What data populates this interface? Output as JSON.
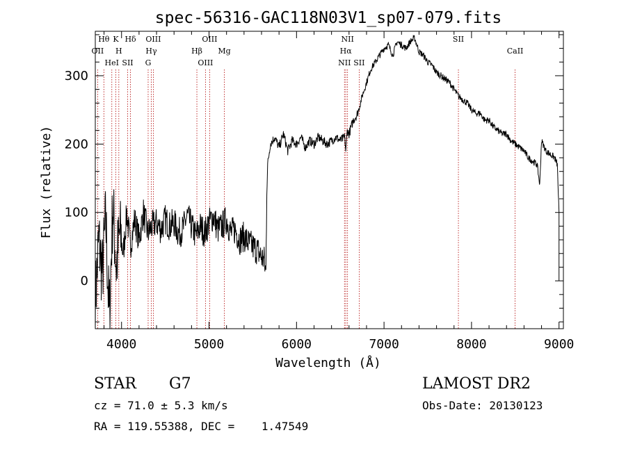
{
  "chart_data": {
    "type": "line",
    "title": "spec-56316-GAC118N03V1_sp07-079.fits",
    "xlabel": "Wavelength (Å)",
    "ylabel": "Flux (relative)",
    "xlim": [
      3700,
      9050
    ],
    "ylim": [
      -70,
      365
    ],
    "grid": false,
    "xticks": [
      {
        "value": 4000,
        "label": "4000"
      },
      {
        "value": 5000,
        "label": "5000"
      },
      {
        "value": 6000,
        "label": "6000"
      },
      {
        "value": 7000,
        "label": "7000"
      },
      {
        "value": 8000,
        "label": "8000"
      },
      {
        "value": 9000,
        "label": "9000"
      }
    ],
    "yticks": [
      {
        "value": 0,
        "label": "0"
      },
      {
        "value": 100,
        "label": "100"
      },
      {
        "value": 200,
        "label": "200"
      },
      {
        "value": 300,
        "label": "300"
      }
    ],
    "series": [
      {
        "x": [
          3700,
          3740,
          3780,
          3820,
          3860,
          3900,
          3940,
          3980,
          4020,
          4060,
          4100,
          4150,
          4200,
          4250,
          4300,
          4350,
          4400,
          4450,
          4500,
          4550,
          4600,
          4650,
          4700,
          4750,
          4800,
          4850,
          4900,
          4950,
          5000,
          5050,
          5100,
          5150,
          5200,
          5250,
          5300,
          5350,
          5400,
          5450,
          5500,
          5550,
          5600,
          5630,
          5650,
          5660,
          5670,
          5700,
          5750,
          5800,
          5850,
          5900,
          5950,
          6000,
          6050,
          6100,
          6150,
          6200,
          6250,
          6300,
          6350,
          6400,
          6450,
          6500,
          6550,
          6563,
          6580,
          6600,
          6650,
          6700,
          6750,
          6800,
          6850,
          6900,
          6950,
          7000,
          7050,
          7100,
          7150,
          7200,
          7250,
          7300,
          7350,
          7400,
          7450,
          7500,
          7550,
          7600,
          7650,
          7700,
          7750,
          7800,
          7850,
          7900,
          7950,
          8000,
          8050,
          8100,
          8150,
          8200,
          8250,
          8300,
          8350,
          8400,
          8450,
          8500,
          8550,
          8600,
          8650,
          8700,
          8750,
          8780,
          8800,
          8850,
          8900,
          8950,
          8980,
          9000
        ],
        "y": [
          -30,
          60,
          10,
          90,
          -60,
          110,
          20,
          70,
          40,
          100,
          50,
          90,
          60,
          100,
          70,
          80,
          85,
          75,
          90,
          80,
          85,
          70,
          75,
          95,
          80,
          65,
          80,
          70,
          85,
          95,
          75,
          80,
          90,
          70,
          75,
          60,
          65,
          55,
          50,
          45,
          35,
          30,
          10,
          130,
          170,
          200,
          210,
          195,
          215,
          190,
          205,
          200,
          210,
          195,
          205,
          200,
          210,
          205,
          200,
          205,
          210,
          205,
          210,
          190,
          220,
          215,
          235,
          245,
          270,
          290,
          310,
          320,
          330,
          340,
          345,
          330,
          350,
          345,
          340,
          350,
          355,
          335,
          330,
          320,
          315,
          305,
          300,
          295,
          290,
          280,
          270,
          265,
          260,
          250,
          245,
          245,
          235,
          235,
          225,
          220,
          215,
          215,
          205,
          200,
          195,
          190,
          180,
          175,
          170,
          140,
          205,
          190,
          185,
          180,
          170,
          100
        ]
      }
    ],
    "lines": [
      {
        "label": "Hθ",
        "x": 3798
      },
      {
        "label": "OII",
        "x": 3727
      },
      {
        "label": "HeI",
        "x": 3889
      },
      {
        "label": "K",
        "x": 3934
      },
      {
        "label": "H",
        "x": 3969
      },
      {
        "label": "SII",
        "x": 4070
      },
      {
        "label": "Hδ",
        "x": 4102
      },
      {
        "label": "Hγ",
        "x": 4340
      },
      {
        "label": "G",
        "x": 4304
      },
      {
        "label": "OIII",
        "x": 4363
      },
      {
        "label": "Hβ",
        "x": 4861
      },
      {
        "label": "OIII",
        "x": 4959
      },
      {
        "label": "OIII",
        "x": 5007
      },
      {
        "label": "Mg",
        "x": 5175
      },
      {
        "label": "NII",
        "x": 6548
      },
      {
        "label": "NII",
        "x": 6583
      },
      {
        "label": "Hα",
        "x": 6563
      },
      {
        "label": "SII",
        "x": 6716
      },
      {
        "label": "SII",
        "x": 7850
      },
      {
        "label": "CaII",
        "x": 8498
      }
    ],
    "line_color": "#000000",
    "marker_line_color": "#b00000"
  },
  "info": {
    "object_class": "STAR",
    "subclass": "G7",
    "survey": "LAMOST DR2",
    "cz": "cz = 71.0 ± 5.3 km/s",
    "obs_date": "Obs-Date: 20130123",
    "coords": "RA = 119.55388, DEC =    1.47549"
  }
}
